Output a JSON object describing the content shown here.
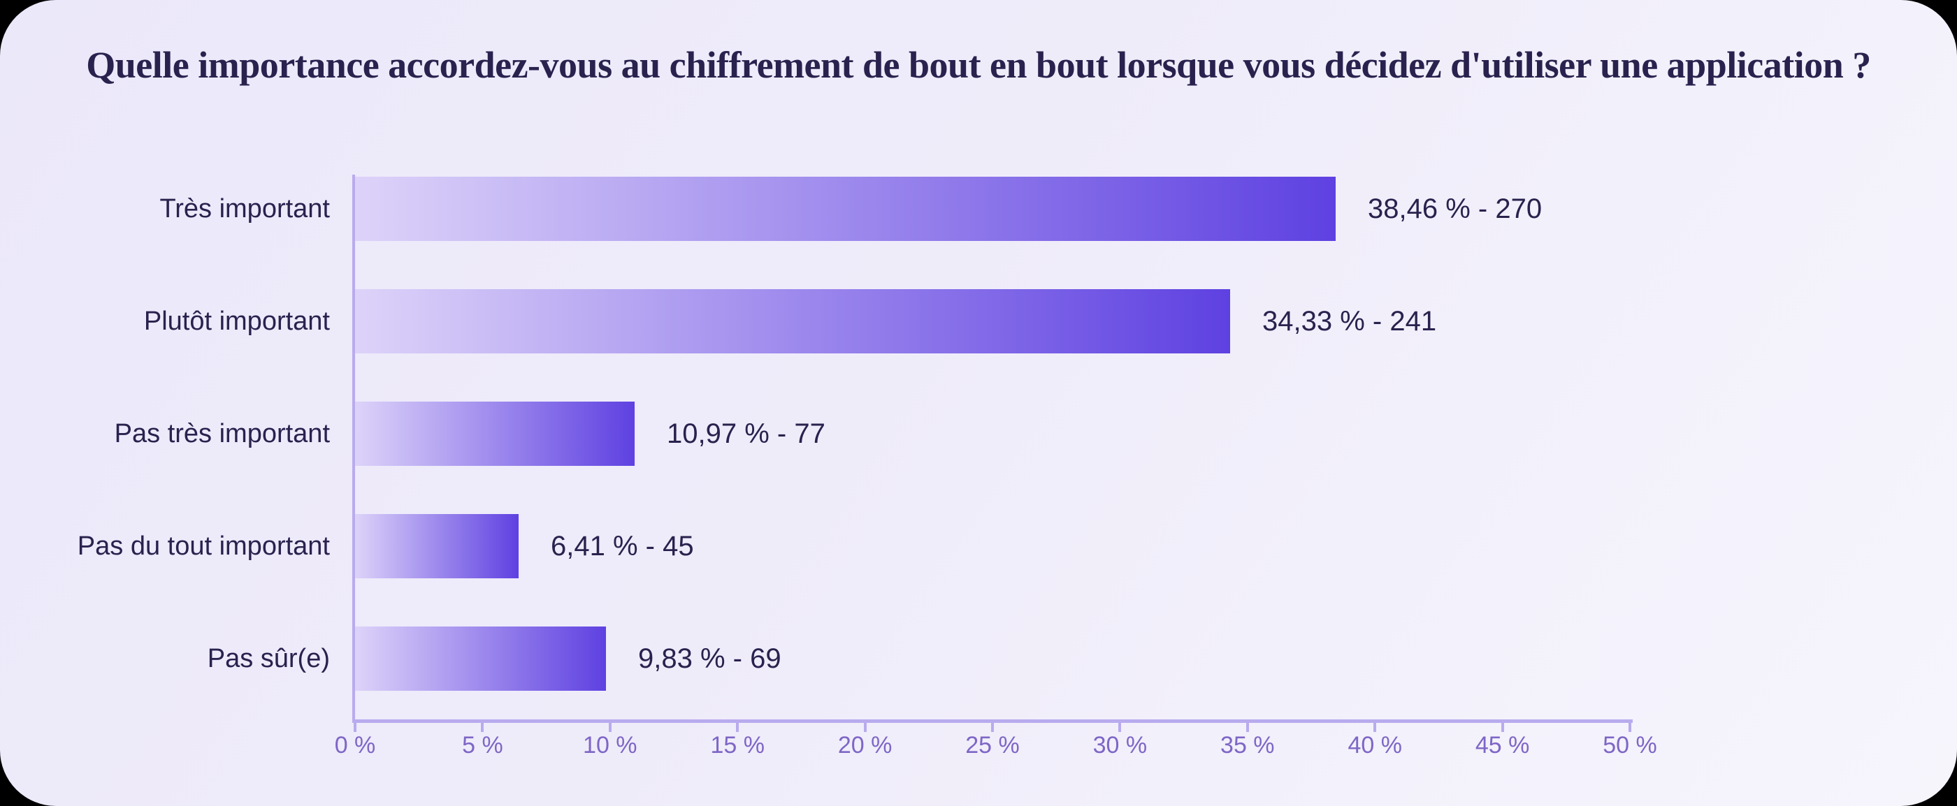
{
  "chart_data": {
    "type": "bar",
    "orientation": "horizontal",
    "title": "Quelle importance accordez-vous au chiffrement de bout en bout lorsque vous décidez d'utiliser une application ?",
    "categories": [
      "Très important",
      "Plutôt important",
      "Pas très important",
      "Pas du tout important",
      "Pas sûr(e)"
    ],
    "values": [
      38.46,
      34.33,
      10.97,
      6.41,
      9.83
    ],
    "counts": [
      270,
      241,
      77,
      45,
      69
    ],
    "value_labels": [
      "38,46 % - 270",
      "34,33 % - 241",
      "10,97 % - 77",
      "6,41 % - 45",
      "9,83 % - 69"
    ],
    "xlabel": "",
    "ylabel": "",
    "x_axis": {
      "min": 0,
      "max": 50,
      "step": 5,
      "unit": "%",
      "tick_labels": [
        "0 %",
        "5 %",
        "10 %",
        "15 %",
        "20 %",
        "25 %",
        "30 %",
        "35 %",
        "40 %",
        "45 %",
        "50 %"
      ]
    },
    "grid": false,
    "legend": false
  },
  "colors": {
    "page_background": "#000000",
    "card_background_start": "#ebe8fa",
    "card_background_end": "#f6f5fc",
    "title_text": "#29224e",
    "category_label_text": "#29224e",
    "value_label_text": "#29224e",
    "bar_gradient_start": "#ddd3f9",
    "bar_gradient_end": "#5e41e1",
    "axis_line": "#b9abee",
    "tick_label_text": "#7e66c6"
  }
}
